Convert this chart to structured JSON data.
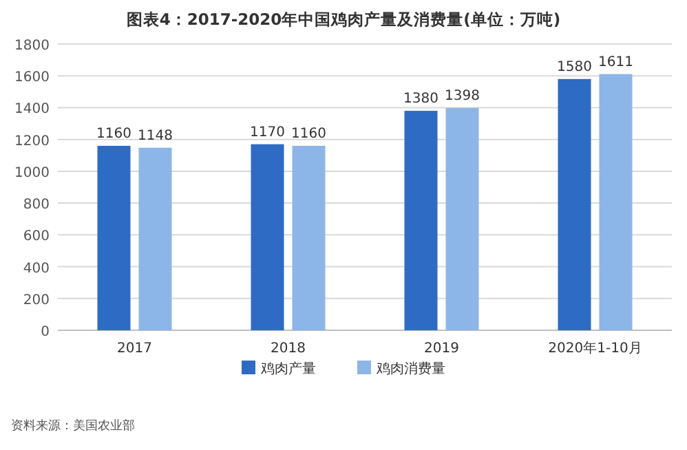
{
  "chart_data": {
    "type": "bar",
    "title": "图表4：2017-2020年中国鸡肉产量及消费量(单位：万吨)",
    "categories": [
      "2017",
      "2018",
      "2019",
      "2020年1-10月"
    ],
    "series": [
      {
        "name": "鸡肉产量",
        "color": "#2e6bc4",
        "values": [
          1160,
          1170,
          1380,
          1580
        ]
      },
      {
        "name": "鸡肉消费量",
        "color": "#8db6e8",
        "values": [
          1148,
          1160,
          1398,
          1611
        ]
      }
    ],
    "ylim": [
      0,
      1800
    ],
    "yticks": [
      0,
      200,
      400,
      600,
      800,
      1000,
      1200,
      1400,
      1600,
      1800
    ],
    "grid": "y",
    "legend": "bottom",
    "data_labels": true,
    "annotations": [
      "资料来源：美国农业部"
    ]
  }
}
